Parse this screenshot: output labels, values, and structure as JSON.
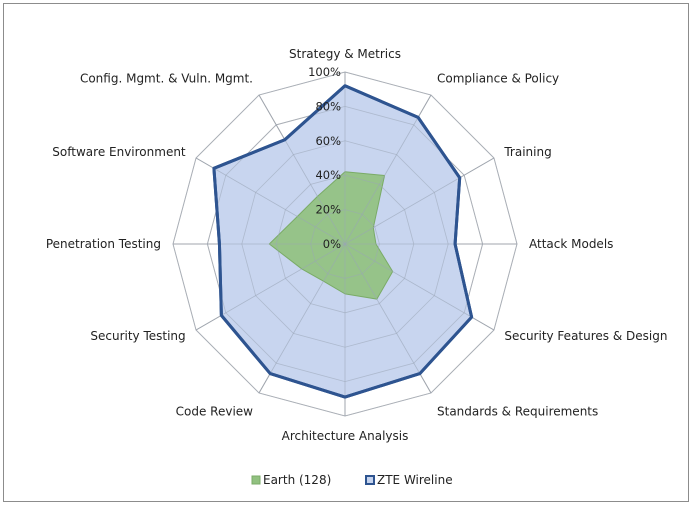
{
  "chart_data": {
    "type": "radar",
    "title": "",
    "categories": [
      "Strategy & Metrics",
      "Compliance & Policy",
      "Training",
      "Attack Models",
      "Security Features & Design",
      "Standards & Requirements",
      "Architecture Analysis",
      "Code Review",
      "Security Testing",
      "Penetration Testing",
      "Software Environment",
      "Config. Mgmt. & Vuln. Mgmt."
    ],
    "series": [
      {
        "name": "ZTE Wireline",
        "values": [
          0.92,
          0.85,
          0.77,
          0.64,
          0.85,
          0.87,
          0.89,
          0.87,
          0.83,
          0.73,
          0.88,
          0.7
        ]
      },
      {
        "name": "Earth (128)",
        "values": [
          0.42,
          0.46,
          0.19,
          0.18,
          0.32,
          0.37,
          0.29,
          0.25,
          0.29,
          0.44,
          0.32,
          0.32
        ]
      }
    ],
    "ticks": [
      "0%",
      "20%",
      "40%",
      "60%",
      "80%",
      "100%"
    ],
    "rlim": [
      0,
      1
    ],
    "grid": true,
    "legend_position": "bottom",
    "colors": {
      "ZTE Wireline": {
        "fill": "#c5d3ee",
        "stroke": "#2e5490"
      },
      "Earth (128)": {
        "fill": "#91c180",
        "stroke": "#7aab67"
      },
      "grid": "#b9b9b9",
      "axis": "#a6a6a6"
    }
  }
}
